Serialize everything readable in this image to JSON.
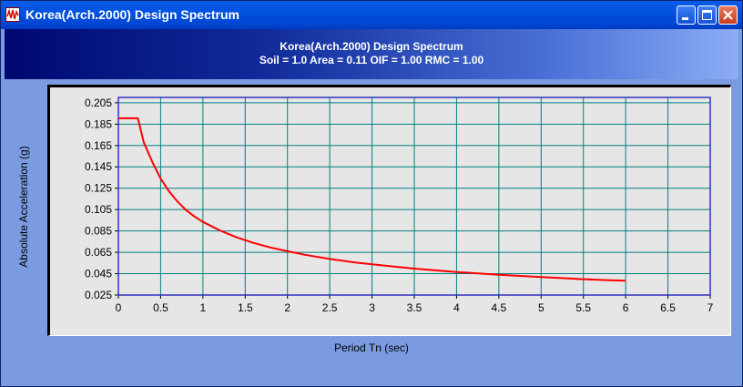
{
  "window": {
    "title": "Korea(Arch.2000) Design Spectrum"
  },
  "header": {
    "title": "Korea(Arch.2000) Design Spectrum",
    "subtitle": "Soil = 1.0  Area = 0.11  OIF = 1.00  RMC = 1.00"
  },
  "colors": {
    "series": "#ff0000",
    "grid": "#008080",
    "axis_frame": "#3030c0"
  },
  "chart_data": {
    "type": "line",
    "title": "Korea(Arch.2000) Design Spectrum",
    "subtitle": "Soil = 1.0  Area = 0.11  OIF = 1.00  RMC = 1.00",
    "xlabel": "Period Tn (sec)",
    "ylabel": "Absolute Acceleration (g)",
    "xlim": [
      0,
      7
    ],
    "ylim": [
      0.025,
      0.21
    ],
    "xticks": [
      "0",
      "0.5",
      "1",
      "1.5",
      "2",
      "2.5",
      "3",
      "3.5",
      "4",
      "4.5",
      "5",
      "5.5",
      "6",
      "6.5",
      "7"
    ],
    "yticks": [
      "0.205",
      "0.185",
      "0.165",
      "0.145",
      "0.125",
      "0.105",
      "0.085",
      "0.065",
      "0.045",
      "0.025"
    ],
    "grid": true,
    "series": [
      {
        "x": [
          0,
          0.23,
          0.3,
          0.4,
          0.5,
          0.6,
          0.7,
          0.8,
          0.9,
          1.0,
          1.2,
          1.4,
          1.6,
          1.8,
          2.0,
          2.2,
          2.5,
          2.8,
          3.0,
          3.5,
          4.0,
          4.5,
          5.0,
          5.5,
          5.8,
          6.0
        ],
        "y": [
          0.1905,
          0.1905,
          0.168,
          0.15,
          0.134,
          0.122,
          0.1125,
          0.1045,
          0.0985,
          0.0935,
          0.0855,
          0.079,
          0.0738,
          0.0695,
          0.066,
          0.0628,
          0.0588,
          0.0555,
          0.0537,
          0.0497,
          0.0466,
          0.044,
          0.0418,
          0.0398,
          0.0388,
          0.0384
        ]
      }
    ]
  }
}
